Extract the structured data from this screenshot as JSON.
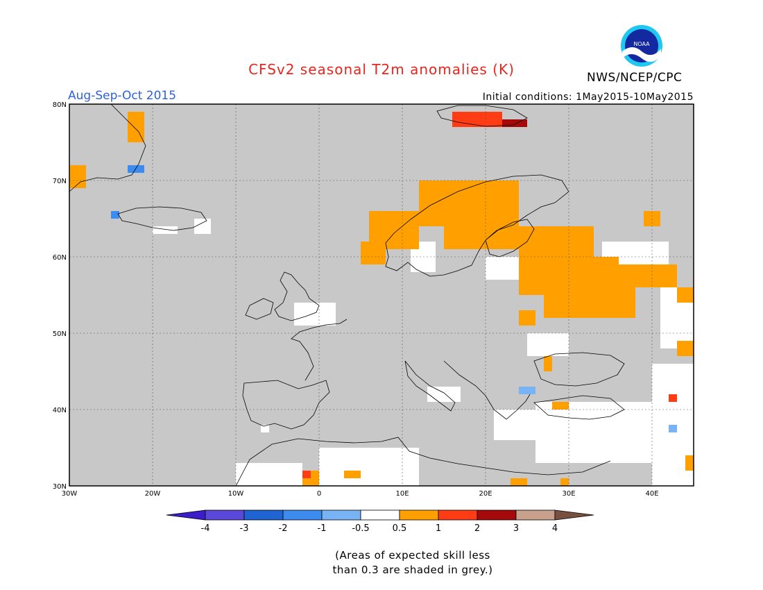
{
  "title": "CFSv2 seasonal T2m anomalies (K)",
  "season": "Aug-Sep-Oct 2015",
  "initial_conditions": "Initial conditions: 1May2015-10May2015",
  "agency": "NWS/NCEP/CPC",
  "logo_text": "NOAA",
  "colors": {
    "title": "#e8261e",
    "season": "#2d5fe0",
    "land_grey": "#c8c8c8",
    "ocean_grey": "#c8c8c8",
    "outside": "#ffffff"
  },
  "map": {
    "lon_range": [
      -30,
      45
    ],
    "lat_range": [
      30,
      80
    ],
    "lat_ticks": [
      "30N",
      "40N",
      "50N",
      "60N",
      "70N",
      "80N"
    ],
    "lon_ticks": [
      "30W",
      "20W",
      "10W",
      "0",
      "10E",
      "20E",
      "30E",
      "40E"
    ],
    "grid": "dotted",
    "regions": [
      {
        "category": "white",
        "lon": [
          0,
          12
        ],
        "lat": [
          30,
          35
        ]
      },
      {
        "category": "white",
        "lon": [
          -10,
          -2
        ],
        "lat": [
          30,
          33
        ]
      },
      {
        "category": "white",
        "lon": [
          26,
          42
        ],
        "lat": [
          33,
          41
        ]
      },
      {
        "category": "white",
        "lon": [
          40,
          45
        ],
        "lat": [
          30,
          46
        ]
      },
      {
        "category": "white",
        "lon": [
          41,
          45
        ],
        "lat": [
          48,
          56
        ]
      },
      {
        "category": "white",
        "lon": [
          34,
          42
        ],
        "lat": [
          57,
          62
        ]
      },
      {
        "category": "white",
        "lon": [
          -3,
          2
        ],
        "lat": [
          51,
          54
        ]
      },
      {
        "category": "white",
        "lon": [
          -7,
          -6
        ],
        "lat": [
          37,
          38
        ]
      },
      {
        "category": "white",
        "lon": [
          -15,
          -13
        ],
        "lat": [
          63,
          65
        ]
      },
      {
        "category": "white",
        "lon": [
          -20,
          -17
        ],
        "lat": [
          63,
          64
        ]
      },
      {
        "category": "white",
        "lon": [
          11,
          14
        ],
        "lat": [
          58,
          62
        ]
      },
      {
        "category": "white",
        "lon": [
          20,
          24
        ],
        "lat": [
          57,
          60
        ]
      },
      {
        "category": "white",
        "lon": [
          25,
          30
        ],
        "lat": [
          47,
          50
        ]
      },
      {
        "category": "white",
        "lon": [
          13,
          17
        ],
        "lat": [
          41,
          43
        ]
      },
      {
        "category": "white",
        "lon": [
          21,
          26
        ],
        "lat": [
          36,
          40
        ]
      },
      {
        "category": "orange",
        "lon": [
          -23,
          -21
        ],
        "lat": [
          75,
          79
        ]
      },
      {
        "category": "orange",
        "lon": [
          -30,
          -28
        ],
        "lat": [
          69,
          72
        ]
      },
      {
        "category": "orange",
        "lon": [
          6,
          12
        ],
        "lat": [
          61,
          66
        ]
      },
      {
        "category": "orange",
        "lon": [
          12,
          24
        ],
        "lat": [
          64,
          70
        ]
      },
      {
        "category": "orange",
        "lon": [
          15,
          24
        ],
        "lat": [
          61,
          64
        ]
      },
      {
        "category": "orange",
        "lon": [
          24,
          33
        ],
        "lat": [
          60,
          64
        ]
      },
      {
        "category": "orange",
        "lon": [
          24,
          36
        ],
        "lat": [
          55,
          60
        ]
      },
      {
        "category": "orange",
        "lon": [
          27,
          38
        ],
        "lat": [
          52,
          56
        ]
      },
      {
        "category": "orange",
        "lon": [
          36,
          43
        ],
        "lat": [
          56,
          59
        ]
      },
      {
        "category": "orange",
        "lon": [
          43,
          45
        ],
        "lat": [
          54,
          56
        ]
      },
      {
        "category": "orange",
        "lon": [
          5,
          8
        ],
        "lat": [
          59,
          62
        ]
      },
      {
        "category": "orange",
        "lon": [
          23,
          25
        ],
        "lat": [
          30,
          31
        ]
      },
      {
        "category": "orange",
        "lon": [
          29,
          30
        ],
        "lat": [
          30,
          31
        ]
      },
      {
        "category": "orange",
        "lon": [
          -2,
          0
        ],
        "lat": [
          30,
          32
        ]
      },
      {
        "category": "orange",
        "lon": [
          3,
          5
        ],
        "lat": [
          31,
          32
        ]
      },
      {
        "category": "orange",
        "lon": [
          44,
          45
        ],
        "lat": [
          32,
          34
        ]
      },
      {
        "category": "orange",
        "lon": [
          43,
          45
        ],
        "lat": [
          47,
          49
        ]
      },
      {
        "category": "orange",
        "lon": [
          24,
          26
        ],
        "lat": [
          51,
          53
        ]
      },
      {
        "category": "orange",
        "lon": [
          27,
          28
        ],
        "lat": [
          45,
          47
        ]
      },
      {
        "category": "orange",
        "lon": [
          39,
          41
        ],
        "lat": [
          64,
          66
        ]
      },
      {
        "category": "orange",
        "lon": [
          28,
          30
        ],
        "lat": [
          40,
          41
        ]
      },
      {
        "category": "orange_red",
        "lon": [
          16,
          22
        ],
        "lat": [
          77,
          79
        ]
      },
      {
        "category": "orange_red",
        "lon": [
          -2,
          -1
        ],
        "lat": [
          31,
          32
        ]
      },
      {
        "category": "orange_red",
        "lon": [
          42,
          43
        ],
        "lat": [
          41,
          42
        ]
      },
      {
        "category": "dark_red",
        "lon": [
          22,
          25
        ],
        "lat": [
          77,
          78
        ]
      },
      {
        "category": "light_blue",
        "lon": [
          24,
          26
        ],
        "lat": [
          42,
          43
        ]
      },
      {
        "category": "light_blue",
        "lon": [
          -22,
          -21
        ],
        "lat": [
          71,
          72
        ]
      },
      {
        "category": "light_blue",
        "lon": [
          42,
          43
        ],
        "lat": [
          37,
          38
        ]
      },
      {
        "category": "mid_blue",
        "lon": [
          -23,
          -21
        ],
        "lat": [
          71,
          72
        ]
      },
      {
        "category": "mid_blue",
        "lon": [
          -25,
          -24
        ],
        "lat": [
          65,
          66
        ]
      }
    ]
  },
  "colorbar": {
    "labels": [
      "-4",
      "-3",
      "-2",
      "-1",
      "-0.5",
      "0.5",
      "1",
      "2",
      "3",
      "4"
    ],
    "colors": [
      "#3c1ec8",
      "#5a48d8",
      "#1e64d2",
      "#3c8cf0",
      "#78b4f5",
      "#ffffff",
      "#ffa000",
      "#ff3c14",
      "#a50a0a",
      "#c8a08c",
      "#785040"
    ],
    "color_keys": {
      "light_blue": "#78b4f5",
      "mid_blue": "#3c8cf0",
      "white": "#ffffff",
      "orange": "#ffa000",
      "orange_red": "#ff3c14",
      "dark_red": "#a50a0a"
    }
  },
  "note_lines": [
    "(Areas of expected skill less",
    "than 0.3 are shaded in grey.)"
  ]
}
